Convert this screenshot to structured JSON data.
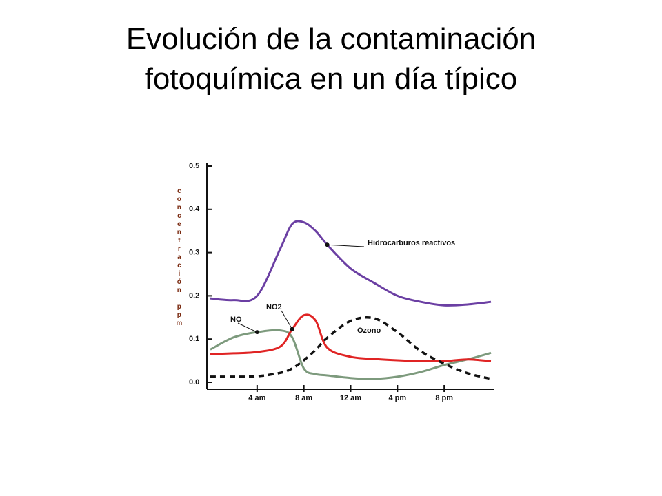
{
  "chart_data": {
    "type": "line",
    "title": "Evolución de la contaminación fotoquímica en un día típico",
    "y_label": "concentración ppm",
    "x": [
      0,
      2,
      4,
      6,
      7,
      8,
      9,
      10,
      12,
      14,
      16,
      18,
      20,
      22,
      24
    ],
    "xlim": [
      0,
      24
    ],
    "xticks": [
      {
        "value": 4,
        "label": "4 am"
      },
      {
        "value": 8,
        "label": "8 am"
      },
      {
        "value": 12,
        "label": "12 am"
      },
      {
        "value": 16,
        "label": "4 pm"
      },
      {
        "value": 20,
        "label": "8 pm"
      }
    ],
    "ylim": [
      0,
      0.5
    ],
    "yticks": [
      {
        "value": 0,
        "label": "0.0"
      },
      0.1,
      0.2,
      0.3,
      0.4,
      0.5
    ],
    "series": [
      {
        "name": "Hidrocarburos reactivos",
        "color": "#6b3fa3",
        "dash": false,
        "values": [
          0.194,
          0.19,
          0.2,
          0.31,
          0.366,
          0.37,
          0.35,
          0.318,
          0.263,
          0.23,
          0.2,
          0.186,
          0.178,
          0.18,
          0.186
        ]
      },
      {
        "name": "NO",
        "color": "#7d9a7d",
        "dash": false,
        "values": [
          0.076,
          0.104,
          0.116,
          0.12,
          0.104,
          0.032,
          0.019,
          0.016,
          0.01,
          0.008,
          0.013,
          0.024,
          0.04,
          0.053,
          0.068
        ]
      },
      {
        "name": "NO2",
        "color": "#e02424",
        "dash": false,
        "values": [
          0.065,
          0.067,
          0.07,
          0.083,
          0.123,
          0.155,
          0.143,
          0.08,
          0.059,
          0.054,
          0.051,
          0.049,
          0.049,
          0.053,
          0.049
        ]
      },
      {
        "name": "Ozono",
        "color": "#111111",
        "dash": true,
        "values": [
          0.013,
          0.013,
          0.014,
          0.022,
          0.032,
          0.051,
          0.075,
          0.103,
          0.142,
          0.148,
          0.116,
          0.072,
          0.043,
          0.021,
          0.008
        ]
      }
    ]
  }
}
